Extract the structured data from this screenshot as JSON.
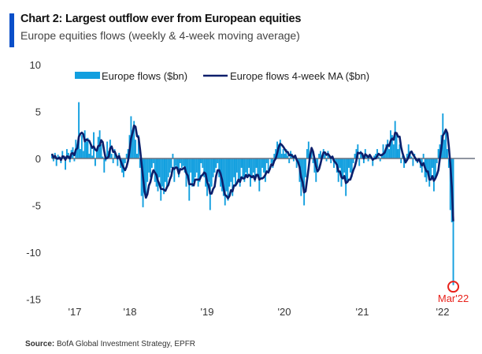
{
  "chart_data": {
    "type": "bar+line",
    "title": "Chart 2: Largest outflow ever from European equities",
    "subtitle": "Europe equities flows (weekly & 4-week moving average)",
    "source_label": "Source:",
    "source_text": "BofA Global Investment Strategy, EPFR",
    "ylim": [
      -15,
      10
    ],
    "yticks": [
      "10",
      "5",
      "0",
      "-5",
      "-10",
      "-15"
    ],
    "xticks": [
      "'17",
      "'18",
      "'19",
      "'20",
      "'21",
      "'22"
    ],
    "legend_placement": "top",
    "annotation": "Mar'22",
    "colors": {
      "bars": "#129fdf",
      "ma": "#0b1f6b",
      "annotation": "#e8221b",
      "accent": "#0a4fc9",
      "zero": "#6b7280"
    },
    "series": [
      {
        "name": "Europe flows ($bn)",
        "kind": "bar",
        "frequency": "weekly",
        "start": "2017-01",
        "values": [
          0.5,
          -0.3,
          0.6,
          -0.8,
          0.4,
          0.2,
          -0.5,
          0.8,
          0.3,
          -1.2,
          1.0,
          0.6,
          -0.4,
          0.9,
          1.2,
          -0.3,
          2.0,
          1.5,
          6.0,
          1.0,
          2.5,
          0.8,
          3.0,
          1.8,
          2.2,
          0.5,
          1.5,
          0.3,
          2.8,
          -0.8,
          1.0,
          2.3,
          3.0,
          1.5,
          0.2,
          -1.5,
          -0.3,
          1.8,
          0.8,
          2.0,
          0.5,
          -0.5,
          1.0,
          0.3,
          -0.8,
          0.6,
          -1.0,
          -1.5,
          -2.0,
          -0.5,
          0.5,
          1.0,
          2.5,
          4.5,
          3.0,
          4.0,
          2.0,
          0.5,
          2.5,
          -1.0,
          -4.0,
          -5.2,
          -3.5,
          -4.0,
          -2.5,
          -1.5,
          -2.0,
          -1.0,
          -0.5,
          -2.5,
          -3.0,
          -3.5,
          -2.0,
          -4.5,
          -3.0,
          -3.8,
          -2.5,
          -3.0,
          -2.0,
          -1.5,
          -1.0,
          0.5,
          -2.5,
          -0.8,
          -1.2,
          -2.0,
          -0.5,
          -1.0,
          -0.8,
          -1.5,
          -3.0,
          -2.0,
          -4.5,
          -1.5,
          -3.0,
          -2.5,
          -2.0,
          -1.5,
          -3.0,
          -2.5,
          -0.5,
          -1.0,
          -2.0,
          -3.0,
          -4.0,
          -2.5,
          -5.5,
          -3.0,
          -2.0,
          -1.5,
          -1.0,
          -0.5,
          -2.0,
          -3.0,
          -3.5,
          -4.0,
          -5.0,
          -3.5,
          -4.5,
          -3.0,
          -2.5,
          -4.0,
          -2.0,
          -3.0,
          -1.5,
          -2.5,
          -3.0,
          -1.0,
          -2.0,
          -2.5,
          -1.5,
          -2.0,
          -1.0,
          -3.0,
          -2.0,
          -1.5,
          -2.5,
          -1.0,
          -2.0,
          -3.5,
          -2.0,
          -1.0,
          -1.5,
          -2.5,
          -0.5,
          -1.5,
          0.0,
          -0.5,
          -1.0,
          0.5,
          1.0,
          1.8,
          1.5,
          2.0,
          0.5,
          1.0,
          0.5,
          1.0,
          0.3,
          -0.5,
          0.8,
          0.5,
          -0.3,
          0.2,
          -1.0,
          -0.5,
          -2.5,
          -4.0,
          -3.0,
          -5.0,
          -2.0,
          1.0,
          1.8,
          0.5,
          1.2,
          -0.5,
          -1.5,
          -2.5,
          -1.0,
          0.5,
          0.8,
          0.3,
          1.0,
          0.5,
          -0.3,
          0.8,
          0.2,
          -0.5,
          0.3,
          -1.0,
          -0.5,
          -1.5,
          -2.5,
          -1.0,
          -3.0,
          -2.0,
          -1.5,
          -4.0,
          -2.5,
          -1.0,
          -1.5,
          -2.0,
          -0.5,
          0.5,
          1.0,
          1.5,
          -0.8,
          0.8,
          0.5,
          -0.5,
          1.0,
          0.3,
          -0.3,
          0.5,
          0.0,
          -0.8,
          0.3,
          0.5,
          1.0,
          0.2,
          -0.3,
          0.5,
          1.5,
          0.8,
          1.5,
          2.0,
          1.0,
          3.0,
          2.5,
          1.5,
          4.0,
          2.8,
          1.0,
          1.5,
          -0.5,
          0.3,
          -1.0,
          -0.5,
          0.5,
          1.5,
          0.8,
          0.2,
          -0.8,
          0.5,
          -0.3,
          -0.5,
          0.0,
          -1.0,
          -1.5,
          0.5,
          -2.0,
          -2.5,
          -1.5,
          -3.0,
          -2.0,
          -1.0,
          -3.5,
          -2.0,
          -0.5,
          1.0,
          1.5,
          2.5,
          4.8,
          2.0,
          3.0,
          1.0,
          -1.0,
          -5.5,
          -6.8,
          -13.5
        ]
      },
      {
        "name": "Europe flows 4-week MA ($bn)",
        "kind": "line",
        "derived_from": "4-week moving average of weekly flows"
      }
    ]
  }
}
